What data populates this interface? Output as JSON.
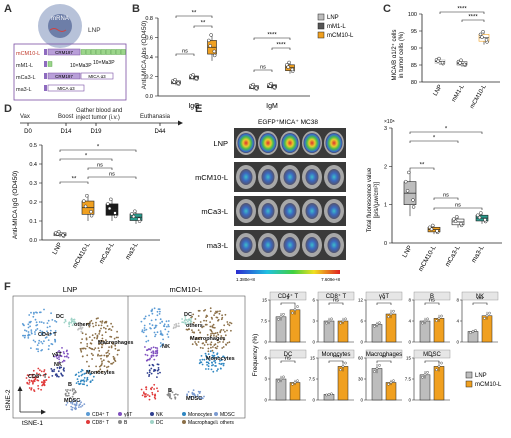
{
  "panel_letters": [
    "A",
    "B",
    "C",
    "D",
    "E",
    "F"
  ],
  "colors": {
    "lnp": "#bdbdbd",
    "mm1": "#555555",
    "mcm10": "#f0a020",
    "mca3": "#1a1a1a",
    "ma3": "#2a9d8f",
    "purple": "#7a4fa3",
    "green_box": "#7cc36c",
    "sig": "#000000"
  },
  "panelA": {
    "lnp_label": "LNP",
    "mrna_label": "mRNA",
    "rows": [
      {
        "name": "mCM10-L",
        "crm": "CRM197",
        "tag": "10×Ma3P"
      },
      {
        "name": "mM1-L",
        "crm": "",
        "tag": "10×Ma3P"
      },
      {
        "name": "mCa3-L",
        "crm": "CRM197",
        "tag": "MICA α3"
      },
      {
        "name": "ma3-L",
        "crm": "",
        "tag": "MICA α3"
      }
    ]
  },
  "panelB": {
    "ylabel": "Anti-MICA Abs (OD450)",
    "legend": [
      "LNP",
      "mM1-L",
      "mCM10-L"
    ],
    "groups": [
      "IgG",
      "IgM"
    ],
    "sig": [
      "**",
      "**",
      "ns",
      "****",
      "****",
      "ns"
    ],
    "ticks": [
      "0.0",
      "0.2",
      "0.4",
      "0.6",
      "0.8"
    ]
  },
  "chart_data": [
    {
      "type": "box",
      "panel": "B",
      "ylabel": "Anti-MICA Abs (OD450)",
      "ylim": [
        0,
        0.8
      ],
      "categories": [
        "IgG",
        "IgM"
      ],
      "series": [
        {
          "name": "LNP",
          "values": [
            0.14,
            0.09
          ]
        },
        {
          "name": "mM1-L",
          "values": [
            0.19,
            0.1
          ]
        },
        {
          "name": "mCM10-L",
          "values": [
            0.5,
            0.29
          ]
        }
      ]
    },
    {
      "type": "box",
      "panel": "C",
      "ylabel": "MICA/B α1/2+ cells in tumor cells (%)",
      "ylim": [
        80,
        100
      ],
      "categories": [
        "LNP",
        "mM1-L",
        "mCM10-L"
      ],
      "values": [
        86,
        85.5,
        93
      ]
    },
    {
      "type": "box",
      "panel": "D",
      "ylabel": "Anti-MICA IgG (OD450)",
      "ylim": [
        0,
        0.5
      ],
      "categories": [
        "LNP",
        "mCM10-L",
        "mCa3-L",
        "ma3-L"
      ],
      "values": [
        0.03,
        0.17,
        0.16,
        0.12
      ]
    },
    {
      "type": "box",
      "panel": "E",
      "ylabel": "Total fluorescence value [p/s/(μw/cm²)]",
      "ylim": [
        0,
        3
      ],
      "categories": [
        "LNP",
        "mCM10-L",
        "mCa3-L",
        "ma3-L"
      ],
      "values": [
        1.3,
        0.35,
        0.55,
        0.65
      ]
    },
    {
      "type": "bar",
      "panel": "F",
      "ylabel": "Frequency (%)",
      "categories": [
        "CD4⁺ T",
        "CD8⁺ T",
        "γδT",
        "B",
        "NK",
        "DC",
        "Monocytes",
        "Macrophages",
        "MDSC"
      ],
      "series": [
        {
          "name": "LNP",
          "values": [
            9,
            3,
            5,
            4,
            2,
            3,
            2,
            45,
            9
          ]
        },
        {
          "name": "mCM10-L",
          "values": [
            11.5,
            3,
            8,
            4.5,
            5,
            2.5,
            12,
            25,
            12
          ]
        }
      ]
    }
  ],
  "panelC": {
    "ylabel_line1": "MICA/B α1/2⁺ cells",
    "ylabel_line2": "in tumor cells (%)",
    "ticks": [
      "80",
      "85",
      "90",
      "95",
      "100"
    ],
    "xlabels": [
      "LNP",
      "mM1-L",
      "mCM10-L"
    ],
    "sig": [
      "****",
      "****"
    ]
  },
  "panelD": {
    "timeline": [
      "Vax",
      "Boost",
      "Gather blood and",
      "inject tumor (i.v.)",
      "Euthanasia"
    ],
    "days": [
      "D0",
      "D14",
      "D19",
      "D44"
    ],
    "ylabel": "Anti-MICA IgG (OD450)",
    "ticks": [
      "0.0",
      "0.1",
      "0.2",
      "0.3",
      "0.4",
      "0.5"
    ],
    "xlabels": [
      "LNP",
      "mCM10-L",
      "mCa3-L",
      "ma3-L"
    ],
    "sig": [
      "*",
      "*",
      "**",
      "ns",
      "ns"
    ]
  },
  "panelE": {
    "title": "EGFP⁺MICA⁺ MC38",
    "rows": [
      "LNP",
      "mCM10-L",
      "mCa3-L",
      "ma3-L"
    ],
    "scale_min": "1.380e+8",
    "scale_max": "7.609e+8",
    "ylabel_line1": "Total fluorescence value",
    "ylabel_line2": "[p/s/(μw/cm²)]",
    "exp": "×10⁸",
    "ticks": [
      "0",
      "1",
      "2",
      "3"
    ],
    "xlabels": [
      "LNP",
      "mCM10-L",
      "mCa3-L",
      "ma3-L"
    ],
    "sig": [
      "*",
      "*",
      "**",
      "ns",
      "ns"
    ]
  },
  "panelF": {
    "tsne_titles": [
      "LNP",
      "mCM10-L"
    ],
    "axis_x": "tSNE-1",
    "axis_y": "tSNE-2",
    "cluster_labels_left": [
      "CD4⁺ T",
      "γδT",
      "NK",
      "CD8⁺ T",
      "B",
      "MDSC",
      "Monocytes",
      "Macrophages",
      "DC",
      "others"
    ],
    "cluster_labels_right": [
      "DC",
      "others",
      "NK",
      "Macrophages",
      "Monocytes",
      "MDSC",
      "B"
    ],
    "legend": [
      "CD4⁺ T",
      "γδT",
      "NK",
      "Monocytes",
      "MDSC",
      "CD8⁺ T",
      "B",
      "DC",
      "Macrophages",
      "others"
    ],
    "ylabel": "Frequency (%)",
    "bar_titles": [
      "CD4⁺ T",
      "CD8⁺ T",
      "γδT",
      "B",
      "NK",
      "DC",
      "Monocytes",
      "Macrophages",
      "MDSC"
    ],
    "bar_sig": [
      "*",
      "ns",
      "*",
      "ns",
      "***",
      "ns",
      "***",
      "**",
      "*"
    ],
    "legend2": [
      "LNP",
      "mCM10-L"
    ]
  }
}
